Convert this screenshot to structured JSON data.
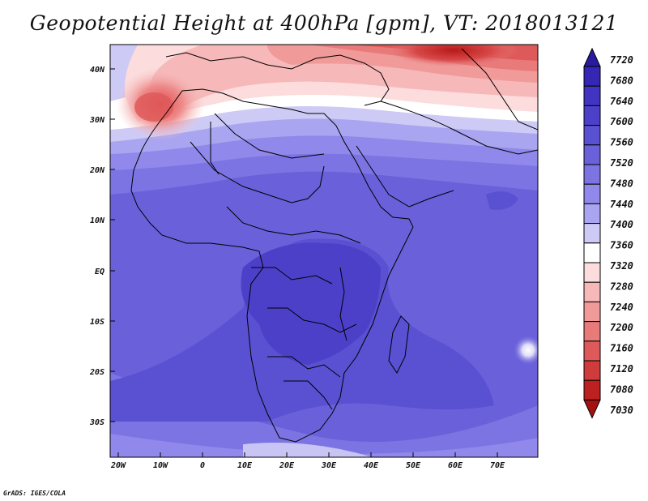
{
  "title": "Geopotential Height at 400hPa [gpm], VT: 2018013121",
  "credit": "GrADS: IGES/COLA",
  "map": {
    "variable": "Geopotential Height",
    "level": "400hPa",
    "units": "gpm",
    "valid_time": "2018013121",
    "lon_labels": [
      "20W",
      "10W",
      "0",
      "10E",
      "20E",
      "30E",
      "40E",
      "50E",
      "60E",
      "70E"
    ],
    "lat_labels": [
      "40N",
      "30N",
      "20N",
      "10N",
      "EQ",
      "10S",
      "20S",
      "30S"
    ]
  },
  "colorbar": {
    "labels": [
      "7720",
      "7680",
      "7640",
      "7600",
      "7560",
      "7520",
      "7480",
      "7440",
      "7400",
      "7360",
      "7320",
      "7280",
      "7240",
      "7200",
      "7160",
      "7120",
      "7080",
      "7030"
    ],
    "colors": [
      "#2a1aa0",
      "#3526b4",
      "#4134c2",
      "#4c40c9",
      "#5a50d2",
      "#6a60da",
      "#7c74e2",
      "#9088ea",
      "#aaa5f0",
      "#cdcaf6",
      "#ffffff",
      "#fcdcdc",
      "#f6b8b8",
      "#f09a9a",
      "#e87a7a",
      "#de5a5a",
      "#d03c3c",
      "#bc2020",
      "#a51010"
    ]
  }
}
